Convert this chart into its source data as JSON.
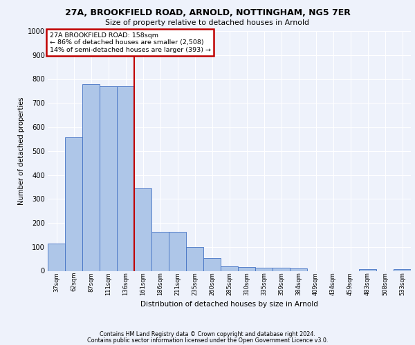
{
  "title_line1": "27A, BROOKFIELD ROAD, ARNOLD, NOTTINGHAM, NG5 7ER",
  "title_line2": "Size of property relative to detached houses in Arnold",
  "xlabel": "Distribution of detached houses by size in Arnold",
  "ylabel": "Number of detached properties",
  "categories": [
    "37sqm",
    "62sqm",
    "87sqm",
    "111sqm",
    "136sqm",
    "161sqm",
    "186sqm",
    "211sqm",
    "235sqm",
    "260sqm",
    "285sqm",
    "310sqm",
    "335sqm",
    "359sqm",
    "384sqm",
    "409sqm",
    "434sqm",
    "459sqm",
    "483sqm",
    "508sqm",
    "533sqm"
  ],
  "values": [
    113,
    558,
    778,
    770,
    770,
    343,
    163,
    163,
    98,
    52,
    18,
    15,
    13,
    13,
    10,
    0,
    0,
    0,
    8,
    0,
    8
  ],
  "bar_color": "#aec6e8",
  "bar_edge_color": "#4472c4",
  "vline_x": 4.5,
  "highlight_color": "#c00000",
  "annotation_text": "27A BROOKFIELD ROAD: 158sqm\n← 86% of detached houses are smaller (2,508)\n14% of semi-detached houses are larger (393) →",
  "annotation_box_color": "#c00000",
  "ylim": [
    0,
    1000
  ],
  "yticks": [
    0,
    100,
    200,
    300,
    400,
    500,
    600,
    700,
    800,
    900,
    1000
  ],
  "footer_line1": "Contains HM Land Registry data © Crown copyright and database right 2024.",
  "footer_line2": "Contains public sector information licensed under the Open Government Licence v3.0.",
  "background_color": "#eef2fb",
  "grid_color": "#ffffff"
}
